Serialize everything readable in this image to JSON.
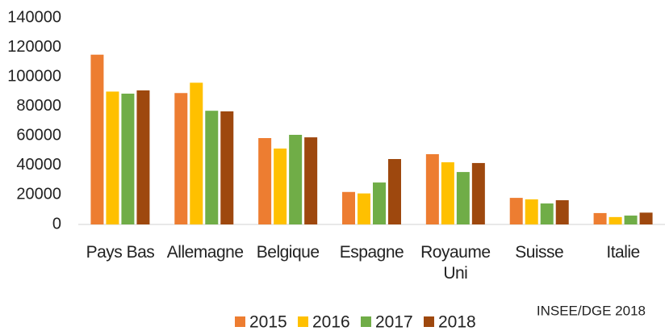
{
  "chart_data": {
    "type": "bar",
    "categories": [
      "Pays Bas",
      "Allemagne",
      "Belgique",
      "Espagne",
      "Royaume Uni",
      "Suisse",
      "Italie"
    ],
    "series": [
      {
        "name": "2015",
        "color": "#ED7D31",
        "values": [
          115000,
          89000,
          58500,
          22000,
          47600,
          18000,
          7700
        ]
      },
      {
        "name": "2016",
        "color": "#FFC000",
        "values": [
          90000,
          96000,
          51400,
          21000,
          42100,
          17000,
          5000
        ]
      },
      {
        "name": "2017",
        "color": "#70AD47",
        "values": [
          88600,
          77000,
          60700,
          28400,
          35500,
          14200,
          6000
        ]
      },
      {
        "name": "2018",
        "color": "#9E480E",
        "values": [
          90800,
          76600,
          59000,
          44300,
          41600,
          16400,
          8000
        ]
      }
    ],
    "ylim": [
      0,
      140000
    ],
    "yticks": [
      0,
      20000,
      40000,
      60000,
      80000,
      100000,
      120000,
      140000
    ],
    "grid": false,
    "legend": "bottom",
    "source": "INSEE/DGE 2018"
  }
}
